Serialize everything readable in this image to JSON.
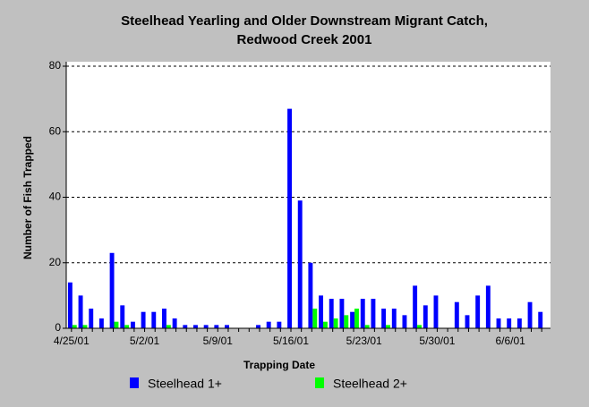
{
  "chart_data": {
    "type": "bar",
    "title": "Steelhead Yearling and Older Downstream Migrant Catch,",
    "subtitle": "Redwood Creek 2001",
    "x_label": "Trapping Date",
    "y_label": "Number of Fish Trapped",
    "categories": [
      "4/25/01",
      null,
      null,
      null,
      null,
      null,
      null,
      "5/2/01",
      null,
      null,
      null,
      null,
      null,
      null,
      "5/9/01",
      null,
      null,
      null,
      null,
      null,
      null,
      "5/16/01",
      null,
      null,
      null,
      null,
      null,
      null,
      "5/23/01",
      null,
      null,
      null,
      null,
      null,
      null,
      "5/30/01",
      null,
      null,
      null,
      null,
      null,
      null,
      "6/6/01",
      null,
      null,
      null
    ],
    "series": [
      {
        "name": "Steelhead 1+",
        "color": "#0000ff",
        "values": [
          14,
          10,
          6,
          3,
          23,
          7,
          2,
          5,
          5,
          6,
          3,
          1,
          1,
          1,
          1,
          1,
          0,
          0,
          1,
          2,
          2,
          67,
          39,
          20,
          10,
          9,
          9,
          5,
          9,
          9,
          6,
          6,
          4,
          13,
          7,
          10,
          0,
          8,
          4,
          10,
          13,
          3,
          3,
          3,
          8,
          5
        ]
      },
      {
        "name": "Steelhead 2+",
        "color": "#00ff00",
        "values": [
          1,
          1,
          0,
          0,
          2,
          1,
          0,
          0,
          0,
          1,
          0,
          0,
          0,
          0,
          0,
          0,
          0,
          0,
          0,
          0,
          0,
          0,
          0,
          6,
          2,
          3,
          4,
          6,
          1,
          0,
          1,
          0,
          0,
          1,
          0,
          0,
          0,
          0,
          0,
          0,
          0,
          0,
          0,
          0,
          0,
          0
        ]
      }
    ],
    "ylim": [
      0,
      80
    ],
    "yticks": [
      0,
      20,
      40,
      60,
      80
    ],
    "grid": true
  }
}
